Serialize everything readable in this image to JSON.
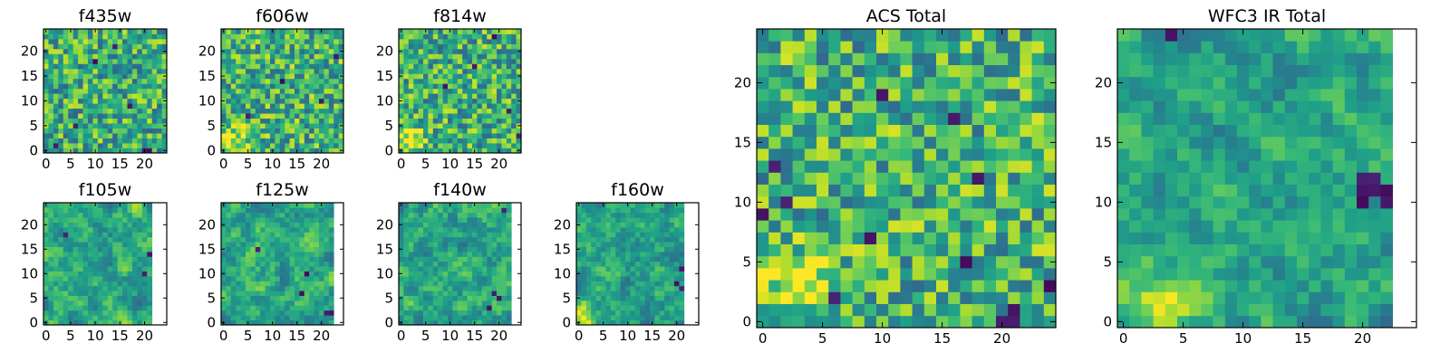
{
  "figure": {
    "colormap": "viridis",
    "colors": {
      "low": "#440154",
      "mid": "#21918c",
      "high": "#fde725",
      "background": "#ffffff",
      "frame": "#000000"
    }
  },
  "chart_data": [
    {
      "type": "heatmap",
      "id": "f435w",
      "title": "f435w",
      "ncols": 25,
      "nrows": 25,
      "xlim": [
        -0.5,
        24.5
      ],
      "ylim": [
        -0.5,
        24.5
      ],
      "xticks": [
        0,
        5,
        10,
        15,
        20
      ],
      "yticks": [
        0,
        5,
        10,
        15,
        20
      ],
      "xticklabels": [
        "0",
        "5",
        "10",
        "15",
        "20"
      ],
      "yticklabels": [
        "0",
        "5",
        "10",
        "15",
        "20"
      ],
      "style": "noisy",
      "seed": 11,
      "base": 0.62,
      "warm_corner": null,
      "dark": [
        [
          2,
          1
        ],
        [
          6,
          5
        ],
        [
          10,
          18
        ],
        [
          14,
          21
        ],
        [
          20,
          0
        ],
        [
          21,
          0
        ],
        [
          17,
          9
        ]
      ]
    },
    {
      "type": "heatmap",
      "id": "f606w",
      "title": "f606w",
      "ncols": 25,
      "nrows": 25,
      "xlim": [
        -0.5,
        24.5
      ],
      "ylim": [
        -0.5,
        24.5
      ],
      "xticks": [
        0,
        5,
        10,
        15,
        20
      ],
      "yticks": [
        0,
        5,
        10,
        15,
        20
      ],
      "xticklabels": [
        "0",
        "5",
        "10",
        "15",
        "20"
      ],
      "yticklabels": [
        "0",
        "5",
        "10",
        "15",
        "20"
      ],
      "style": "noisy",
      "seed": 23,
      "base": 0.64,
      "warm_corner": [
        2,
        2
      ],
      "dark": [
        [
          12,
          14
        ],
        [
          20,
          10
        ],
        [
          5,
          7
        ],
        [
          23,
          19
        ]
      ]
    },
    {
      "type": "heatmap",
      "id": "f814w",
      "title": "f814w",
      "ncols": 25,
      "nrows": 25,
      "xlim": [
        -0.5,
        24.5
      ],
      "ylim": [
        -0.5,
        24.5
      ],
      "xticks": [
        0,
        5,
        10,
        15,
        20
      ],
      "yticks": [
        0,
        5,
        10,
        15,
        20
      ],
      "xticklabels": [
        "0",
        "5",
        "10",
        "15",
        "20"
      ],
      "yticklabels": [
        "0",
        "5",
        "10",
        "15",
        "20"
      ],
      "style": "noisy",
      "seed": 37,
      "base": 0.63,
      "warm_corner": [
        2,
        2
      ],
      "dark": [
        [
          9,
          13
        ],
        [
          15,
          17
        ],
        [
          24,
          3
        ],
        [
          22,
          8
        ],
        [
          19,
          23
        ]
      ]
    },
    {
      "type": "heatmap",
      "id": "f105w",
      "title": "f105w",
      "ncols": 22,
      "nrows": 25,
      "xlim": [
        -0.5,
        24.5
      ],
      "ylim": [
        -0.5,
        24.5
      ],
      "xticks": [
        0,
        5,
        10,
        15,
        20
      ],
      "yticks": [
        0,
        5,
        10,
        15,
        20
      ],
      "xticklabels": [
        "0",
        "5",
        "10",
        "15",
        "20"
      ],
      "yticklabels": [
        "0",
        "5",
        "10",
        "15",
        "20"
      ],
      "style": "smooth",
      "seed": 41,
      "base": 0.6,
      "warm_corner": null,
      "dark": [
        [
          20,
          10
        ],
        [
          21,
          14
        ],
        [
          4,
          18
        ]
      ]
    },
    {
      "type": "heatmap",
      "id": "f125w",
      "title": "f125w",
      "ncols": 23,
      "nrows": 25,
      "xlim": [
        -0.5,
        24.5
      ],
      "ylim": [
        -0.5,
        24.5
      ],
      "xticks": [
        0,
        5,
        10,
        15,
        20
      ],
      "yticks": [
        0,
        5,
        10,
        15,
        20
      ],
      "xticklabels": [
        "0",
        "5",
        "10",
        "15",
        "20"
      ],
      "yticklabels": [
        "0",
        "5",
        "10",
        "15",
        "20"
      ],
      "style": "smooth",
      "seed": 53,
      "base": 0.6,
      "warm_corner": null,
      "dark": [
        [
          17,
          10
        ],
        [
          16,
          6
        ],
        [
          21,
          2
        ],
        [
          22,
          2
        ],
        [
          7,
          15
        ]
      ]
    },
    {
      "type": "heatmap",
      "id": "f140w",
      "title": "f140w",
      "ncols": 23,
      "nrows": 25,
      "xlim": [
        -0.5,
        24.5
      ],
      "ylim": [
        -0.5,
        24.5
      ],
      "xticks": [
        0,
        5,
        10,
        15,
        20
      ],
      "yticks": [
        0,
        5,
        10,
        15,
        20
      ],
      "xticklabels": [
        "0",
        "5",
        "10",
        "15",
        "20"
      ],
      "yticklabels": [
        "0",
        "5",
        "10",
        "15",
        "20"
      ],
      "style": "smooth",
      "seed": 67,
      "base": 0.6,
      "warm_corner": null,
      "dark": [
        [
          19,
          6
        ],
        [
          20,
          5
        ],
        [
          21,
          23
        ],
        [
          18,
          3
        ]
      ]
    },
    {
      "type": "heatmap",
      "id": "f160w",
      "title": "f160w",
      "ncols": 22,
      "nrows": 25,
      "xlim": [
        -0.5,
        24.5
      ],
      "ylim": [
        -0.5,
        24.5
      ],
      "xticks": [
        0,
        5,
        10,
        15,
        20
      ],
      "yticks": [
        0,
        5,
        10,
        15,
        20
      ],
      "xticklabels": [
        "0",
        "5",
        "10",
        "15",
        "20"
      ],
      "yticklabels": [
        "0",
        "5",
        "10",
        "15",
        "20"
      ],
      "style": "smooth",
      "seed": 79,
      "base": 0.58,
      "warm_corner": [
        1,
        1
      ],
      "dark": [
        [
          21,
          11
        ],
        [
          21,
          7
        ],
        [
          20,
          8
        ]
      ]
    },
    {
      "type": "heatmap",
      "id": "acs-total",
      "title": "ACS Total",
      "ncols": 25,
      "nrows": 25,
      "xlim": [
        -0.5,
        24.5
      ],
      "ylim": [
        -0.5,
        24.5
      ],
      "xticks": [
        0,
        5,
        10,
        15,
        20
      ],
      "yticks": [
        0,
        5,
        10,
        15,
        20
      ],
      "xticklabels": [
        "0",
        "5",
        "10",
        "15",
        "20"
      ],
      "yticklabels": [
        "0",
        "5",
        "10",
        "15",
        "20"
      ],
      "style": "noisy",
      "seed": 97,
      "base": 0.64,
      "warm_corner": [
        3,
        3
      ],
      "dark": [
        [
          2,
          10
        ],
        [
          0,
          9
        ],
        [
          6,
          2
        ],
        [
          10,
          19
        ],
        [
          17,
          5
        ],
        [
          21,
          0
        ],
        [
          21,
          1
        ],
        [
          20,
          0
        ],
        [
          16,
          17
        ],
        [
          24,
          3
        ],
        [
          9,
          7
        ],
        [
          18,
          12
        ],
        [
          1,
          13
        ]
      ]
    },
    {
      "type": "heatmap",
      "id": "wfc3-ir-total",
      "title": "WFC3 IR Total",
      "ncols": 23,
      "nrows": 25,
      "xlim": [
        -0.5,
        24.5
      ],
      "ylim": [
        -0.5,
        24.5
      ],
      "xticks": [
        0,
        5,
        10,
        15,
        20
      ],
      "yticks": [
        0,
        5,
        10,
        15,
        20
      ],
      "xticklabels": [
        "0",
        "5",
        "10",
        "15",
        "20"
      ],
      "yticklabels": [
        "0",
        "5",
        "10",
        "15",
        "20"
      ],
      "style": "smooth",
      "seed": 113,
      "base": 0.58,
      "warm_corner": [
        3,
        2
      ],
      "dark": [
        [
          20,
          10
        ],
        [
          20,
          11
        ],
        [
          20,
          12
        ],
        [
          21,
          11
        ],
        [
          21,
          12
        ],
        [
          22,
          10
        ],
        [
          22,
          11
        ],
        [
          4,
          24
        ]
      ]
    }
  ]
}
